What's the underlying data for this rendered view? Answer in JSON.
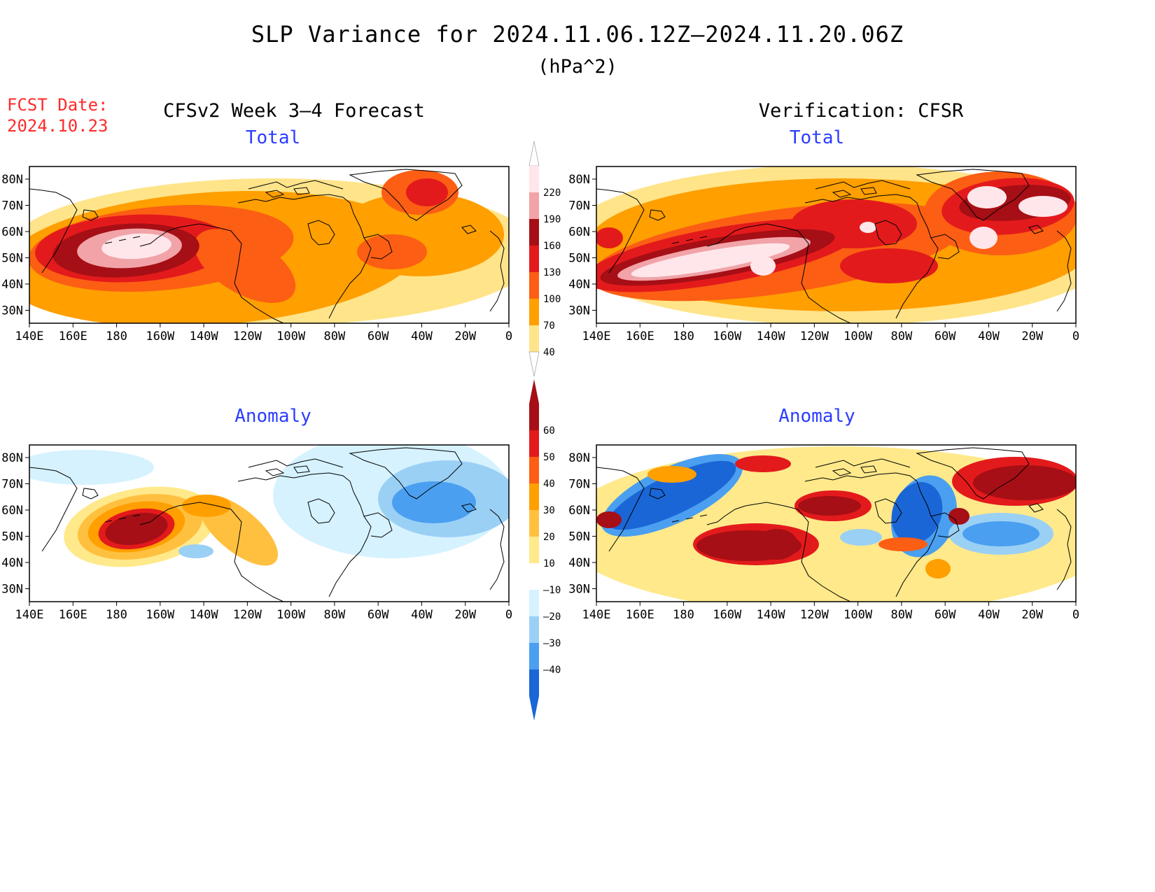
{
  "header": {
    "title": "SLP Variance for 2024.11.06.12Z–2024.11.20.06Z",
    "units": "(hPa^2)",
    "fcst_date_label": "FCST Date:",
    "fcst_date_value": "2024.10.23",
    "left_column_title": "CFSv2 Week 3–4 Forecast",
    "right_column_title": "Verification: CFSR"
  },
  "panels": [
    {
      "id": "forecast-total",
      "title": "Total",
      "scale": "total"
    },
    {
      "id": "verification-total",
      "title": "Total",
      "scale": "total"
    },
    {
      "id": "forecast-anomaly",
      "title": "Anomaly",
      "scale": "anomaly"
    },
    {
      "id": "verification-anomaly",
      "title": "Anomaly",
      "scale": "anomaly"
    }
  ],
  "axes": {
    "lon_labels": [
      "140E",
      "160E",
      "180",
      "160W",
      "140W",
      "120W",
      "100W",
      "80W",
      "60W",
      "40W",
      "20W",
      "0"
    ],
    "lat_labels": [
      "80N",
      "70N",
      "60N",
      "50N",
      "40N",
      "30N"
    ]
  },
  "colorbars": {
    "total": {
      "labels": [
        "220",
        "190",
        "160",
        "130",
        "100",
        "70",
        "40"
      ],
      "colors": [
        "#ffe6ea",
        "#f1a3a8",
        "#a50f15",
        "#e31a1c",
        "#fc5e14",
        "#ff9f00",
        "#ffe48a"
      ]
    },
    "anomaly": {
      "labels": [
        "60",
        "50",
        "40",
        "30",
        "20",
        "10",
        "–10",
        "–20",
        "–30",
        "–40"
      ],
      "colors": [
        "#a50f15",
        "#e31a1c",
        "#fc5e14",
        "#ff9f00",
        "#ffc040",
        "#ffe98a",
        "#ffffff",
        "#d6f2ff",
        "#9bd0f5",
        "#4a9ff0",
        "#1a66d6"
      ]
    }
  }
}
